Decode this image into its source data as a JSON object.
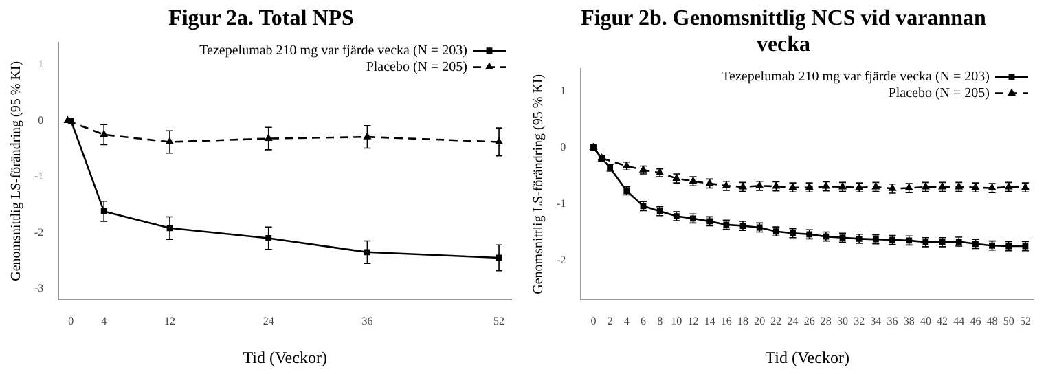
{
  "chart_data": [
    {
      "type": "line",
      "title": "Figur 2a. Total NPS",
      "xlabel": "Tid (Veckor)",
      "ylabel": "Genomsnittlig LS-förändring (95 % KI)",
      "xlim": [
        -1.5,
        53.5
      ],
      "xticks": [
        0,
        4,
        12,
        24,
        36,
        52
      ],
      "ylim": [
        -3.2,
        1.4
      ],
      "yticks": [
        -3,
        -2,
        -1,
        0,
        1
      ],
      "grid": false,
      "legend": "top right",
      "series": [
        {
          "name": "Tezepelumab 210 mg var fjärde vecka (N = 203)",
          "color": "#000000",
          "marker": "square",
          "line_style": "solid",
          "x": [
            0,
            4,
            12,
            24,
            36,
            52
          ],
          "values": [
            0,
            -1.62,
            -1.92,
            -2.1,
            -2.35,
            -2.45
          ],
          "errors": [
            null,
            0.18,
            0.2,
            0.2,
            0.2,
            0.23
          ]
        },
        {
          "name": "Placebo (N = 205)",
          "color": "#000000",
          "marker": "triangle",
          "line_style": "dashed",
          "x": [
            -0.4,
            4,
            12,
            24,
            36,
            52
          ],
          "values": [
            0,
            -0.25,
            -0.38,
            -0.32,
            -0.29,
            -0.38
          ],
          "errors": [
            null,
            0.18,
            0.2,
            0.2,
            0.2,
            0.25
          ]
        }
      ]
    },
    {
      "type": "line",
      "title": "Figur 2b. Genomsnittlig NCS vid varannan vecka",
      "xlabel": "Tid (Veckor)",
      "ylabel": "Genomsnittlig LS-förändring (95 % KI)",
      "xlim": [
        -1.5,
        53
      ],
      "xticks": [
        0,
        2,
        4,
        6,
        8,
        10,
        12,
        14,
        16,
        18,
        20,
        22,
        24,
        26,
        28,
        30,
        32,
        34,
        36,
        38,
        40,
        42,
        44,
        46,
        48,
        50,
        52
      ],
      "ylim": [
        -2.7,
        1.4
      ],
      "yticks": [
        -2,
        -1,
        0,
        1
      ],
      "grid": false,
      "legend": "top right",
      "series": [
        {
          "name": "Tezepelumab 210 mg var fjärde vecka (N = 203)",
          "color": "#000000",
          "marker": "square",
          "line_style": "solid",
          "x": [
            0,
            1,
            2,
            4,
            6,
            8,
            10,
            12,
            14,
            16,
            18,
            20,
            22,
            24,
            26,
            28,
            30,
            32,
            34,
            36,
            38,
            40,
            42,
            44,
            46,
            48,
            50,
            52
          ],
          "values": [
            0,
            -0.19,
            -0.36,
            -0.77,
            -1.04,
            -1.13,
            -1.22,
            -1.26,
            -1.31,
            -1.37,
            -1.39,
            -1.42,
            -1.49,
            -1.52,
            -1.54,
            -1.58,
            -1.6,
            -1.62,
            -1.63,
            -1.64,
            -1.65,
            -1.68,
            -1.68,
            -1.67,
            -1.71,
            -1.74,
            -1.75,
            -1.75
          ],
          "errors": [
            null,
            0.05,
            0.06,
            0.07,
            0.08,
            0.08,
            0.08,
            0.08,
            0.08,
            0.08,
            0.08,
            0.08,
            0.08,
            0.08,
            0.08,
            0.08,
            0.08,
            0.08,
            0.08,
            0.08,
            0.08,
            0.08,
            0.08,
            0.08,
            0.08,
            0.08,
            0.08,
            0.08
          ]
        },
        {
          "name": "Placebo (N = 205)",
          "color": "#000000",
          "marker": "triangle",
          "line_style": "dashed",
          "x": [
            0,
            1,
            4,
            6,
            8,
            10,
            12,
            14,
            16,
            18,
            20,
            22,
            24,
            26,
            28,
            30,
            32,
            34,
            36,
            38,
            40,
            42,
            44,
            46,
            48,
            50,
            52
          ],
          "values": [
            0,
            -0.19,
            -0.33,
            -0.4,
            -0.45,
            -0.55,
            -0.6,
            -0.64,
            -0.68,
            -0.7,
            -0.68,
            -0.69,
            -0.71,
            -0.71,
            -0.69,
            -0.7,
            -0.71,
            -0.7,
            -0.73,
            -0.72,
            -0.7,
            -0.7,
            -0.7,
            -0.71,
            -0.72,
            -0.7,
            -0.71
          ],
          "errors": [
            null,
            0.05,
            0.07,
            0.07,
            0.07,
            0.08,
            0.08,
            0.08,
            0.08,
            0.08,
            0.08,
            0.08,
            0.08,
            0.08,
            0.08,
            0.08,
            0.08,
            0.08,
            0.08,
            0.08,
            0.08,
            0.08,
            0.08,
            0.08,
            0.08,
            0.08,
            0.08
          ]
        }
      ]
    }
  ]
}
